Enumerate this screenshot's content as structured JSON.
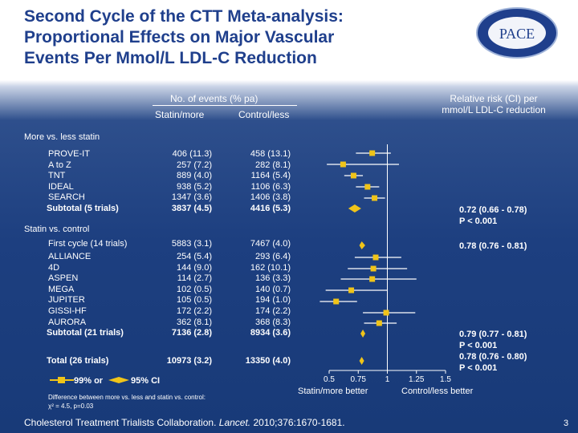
{
  "title": [
    "Second Cycle of the CTT Meta-analysis:",
    "Proportional Effects on Major Vascular",
    "Events Per Mmol/L LDL-C Reduction"
  ],
  "logo": {
    "name": "PACE",
    "ring_text": "PHYSICIANS' ACADEMY FOR CARDIOVASCULAR EDUCATION"
  },
  "headers": {
    "events": "No. of events (% pa)",
    "statin": "Statin/more",
    "control": "Control/less",
    "rr": "Relative risk (CI) per",
    "rr2": "mmol/L LDL-C reduction"
  },
  "sections": {
    "more_less": "More vs. less statin",
    "statin_control": "Statin vs. control"
  },
  "rows1": [
    {
      "name": "PROVE-IT",
      "s": "406 (11.3)",
      "c": "458 (13.1)"
    },
    {
      "name": "A to Z",
      "s": "257 (7.2)",
      "c": "282 (8.1)"
    },
    {
      "name": "TNT",
      "s": "889 (4.0)",
      "c": "1164 (5.4)"
    },
    {
      "name": "IDEAL",
      "s": "938 (5.2)",
      "c": "1106 (6.3)"
    },
    {
      "name": "SEARCH",
      "s": "1347 (3.6)",
      "c": "1406 (3.8)"
    },
    {
      "name": "Subtotal (5 trials)",
      "s": "3837 (4.5)",
      "c": "4416 (5.3)"
    }
  ],
  "rows2_first": {
    "name": "First cycle (14 trials)",
    "s": "5883 (3.1)",
    "c": "7467 (4.0)"
  },
  "rows2": [
    {
      "name": "ALLIANCE",
      "s": "254 (5.4)",
      "c": "293 (6.4)"
    },
    {
      "name": "4D",
      "s": "144 (9.0)",
      "c": "162 (10.1)"
    },
    {
      "name": "ASPEN",
      "s": "114 (2.7)",
      "c": "136 (3.3)"
    },
    {
      "name": "MEGA",
      "s": "102 (0.5)",
      "c": "140 (0.7)"
    },
    {
      "name": "JUPITER",
      "s": "105 (0.5)",
      "c": "194 (1.0)"
    },
    {
      "name": "GISSI-HF",
      "s": "172 (2.2)",
      "c": "174 (2.2)"
    },
    {
      "name": "AURORA",
      "s": "362 (8.1)",
      "c": "368 (8.3)"
    },
    {
      "name": "Subtotal (21 trials)",
      "s": "7136 (2.8)",
      "c": "8934 (3.6)"
    }
  ],
  "total": {
    "name": "Total (26 trials)",
    "s": "10973 (3.2)",
    "c": "13350 (4.0)"
  },
  "rr_labels": {
    "sub1": "0.72 (0.66 - 0.78)",
    "sub1p": "P < 0.001",
    "first": "0.78 (0.76 - 0.81)",
    "sub2": "0.79 (0.77 - 0.81)",
    "sub2p": "P < 0.001",
    "total": "0.78 (0.76 - 0.80)",
    "totalp": "P < 0.001"
  },
  "legend": {
    "ci99": "99% or",
    "ci95": "95% CI"
  },
  "axis": {
    "ticks": [
      "0.5",
      "0.75",
      "1",
      "1.25",
      "1.5"
    ],
    "left_label": "Statin/more better",
    "right_label": "Control/less better"
  },
  "note": [
    "Difference between more vs. less and statin vs. control:",
    "χ² = 4.5, p=0.03"
  ],
  "footer_pre": "Cholesterol Treatment Trialists Collaboration. ",
  "footer_journal": "Lancet.",
  "footer_post": " 2010;376:1670-1681.",
  "page_number": "3",
  "chart_data": {
    "type": "forest",
    "xlabel": "Relative risk per mmol/L LDL-C reduction",
    "xlim": [
      0.5,
      1.5
    ],
    "reference": 1.0,
    "series": [
      {
        "name": "PROVE-IT",
        "rr": 0.87,
        "lo": 0.73,
        "hi": 1.03,
        "kind": "square"
      },
      {
        "name": "A to Z",
        "rr": 0.62,
        "lo": 0.48,
        "hi": 1.1,
        "kind": "square"
      },
      {
        "name": "TNT",
        "rr": 0.71,
        "lo": 0.63,
        "hi": 0.79,
        "kind": "square"
      },
      {
        "name": "IDEAL",
        "rr": 0.83,
        "lo": 0.73,
        "hi": 0.93,
        "kind": "square"
      },
      {
        "name": "SEARCH",
        "rr": 0.89,
        "lo": 0.8,
        "hi": 0.98,
        "kind": "square"
      },
      {
        "name": "Subtotal (5 trials)",
        "rr": 0.72,
        "lo": 0.66,
        "hi": 0.78,
        "kind": "diamond"
      },
      {
        "name": "First cycle (14 trials)",
        "rr": 0.78,
        "lo": 0.76,
        "hi": 0.81,
        "kind": "diamond"
      },
      {
        "name": "ALLIANCE",
        "rr": 0.9,
        "lo": 0.72,
        "hi": 1.12,
        "kind": "square"
      },
      {
        "name": "4D",
        "rr": 0.88,
        "lo": 0.66,
        "hi": 1.17,
        "kind": "square"
      },
      {
        "name": "ASPEN",
        "rr": 0.87,
        "lo": 0.6,
        "hi": 1.25,
        "kind": "square"
      },
      {
        "name": "MEGA",
        "rr": 0.69,
        "lo": 0.47,
        "hi": 1.0,
        "kind": "square"
      },
      {
        "name": "JUPITER",
        "rr": 0.56,
        "lo": 0.42,
        "hi": 0.74,
        "kind": "square"
      },
      {
        "name": "GISSI-HF",
        "rr": 0.99,
        "lo": 0.79,
        "hi": 1.24,
        "kind": "square"
      },
      {
        "name": "AURORA",
        "rr": 0.93,
        "lo": 0.8,
        "hi": 1.08,
        "kind": "square"
      },
      {
        "name": "Subtotal (21 trials)",
        "rr": 0.79,
        "lo": 0.77,
        "hi": 0.81,
        "kind": "diamond"
      },
      {
        "name": "Total (26 trials)",
        "rr": 0.78,
        "lo": 0.76,
        "hi": 0.8,
        "kind": "diamond"
      }
    ]
  }
}
